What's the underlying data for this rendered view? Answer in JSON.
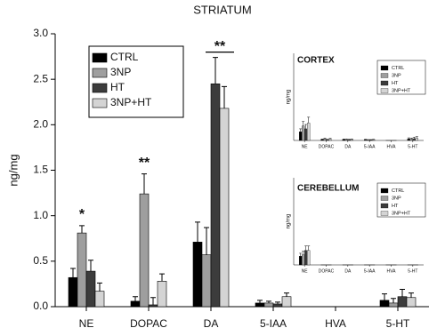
{
  "chart_data": [
    {
      "type": "bar",
      "title": "STRIATUM",
      "y_label": "ng/mg",
      "categories": [
        "NE",
        "DOPAC",
        "DA",
        "5-IAA",
        "HVA",
        "5-HT"
      ],
      "ylim": [
        0,
        3.0
      ],
      "yticks": [
        {
          "value": 0,
          "label": "0.0"
        },
        {
          "value": 0.5,
          "label": "0.5"
        },
        {
          "value": 1.0,
          "label": "1.0"
        },
        {
          "value": 1.5,
          "label": "1.5"
        },
        {
          "value": 2.0,
          "label": "2.0"
        },
        {
          "value": 2.5,
          "label": "2.5"
        },
        {
          "value": 3.0,
          "label": "3.0"
        }
      ],
      "series": [
        {
          "name": "CTRL",
          "color": "#000000",
          "values": [
            0.32,
            0.06,
            0.71,
            0.04,
            0,
            0.07
          ],
          "errors": [
            0.1,
            0.05,
            0.22,
            0.03,
            0,
            0.07
          ]
        },
        {
          "name": "3NP",
          "color": "#9e9e9e",
          "values": [
            0.81,
            1.24,
            0.57,
            0.04,
            0,
            0.04
          ],
          "errors": [
            0.08,
            0.22,
            0.3,
            0.02,
            0,
            0.05
          ]
        },
        {
          "name": "HT",
          "color": "#3c3c3c",
          "values": [
            0.39,
            0.02,
            2.45,
            0.03,
            0,
            0.11
          ],
          "errors": [
            0.12,
            0.08,
            0.29,
            0.02,
            0,
            0.08
          ]
        },
        {
          "name": "3NP+HT",
          "color": "#d4d4d4",
          "values": [
            0.17,
            0.28,
            2.18,
            0.11,
            0,
            0.1
          ],
          "errors": [
            0.09,
            0.08,
            0.24,
            0.04,
            0,
            0.05
          ]
        }
      ],
      "annotations": [
        {
          "text": "*",
          "category": "NE"
        },
        {
          "text": "**",
          "category": "DOPAC"
        },
        {
          "text": "**",
          "category": "DA"
        }
      ]
    },
    {
      "type": "bar",
      "title": "CORTEX",
      "y_label": "ng/mg",
      "categories": [
        "NE",
        "DOPAC",
        "DA",
        "5-IAA",
        "HVA",
        "5-HT"
      ],
      "ylim": [
        0,
        3.0
      ],
      "series": [
        {
          "name": "CTRL",
          "color": "#000000",
          "values": [
            0.3,
            0.03,
            0.03,
            0.02,
            0,
            0.05
          ],
          "errors": [
            0.1,
            0.02,
            0.02,
            0.02,
            0,
            0.04
          ]
        },
        {
          "name": "3NP",
          "color": "#9e9e9e",
          "values": [
            0.5,
            0.05,
            0.03,
            0.02,
            0,
            0.04
          ],
          "errors": [
            0.15,
            0.03,
            0.02,
            0.01,
            0,
            0.04
          ]
        },
        {
          "name": "HT",
          "color": "#3c3c3c",
          "values": [
            0.4,
            0.02,
            0.02,
            0.02,
            0,
            0.06
          ],
          "errors": [
            0.15,
            0.02,
            0.02,
            0.01,
            0,
            0.05
          ]
        },
        {
          "name": "3NP+HT",
          "color": "#d4d4d4",
          "values": [
            0.6,
            0.04,
            0.03,
            0.02,
            0,
            0.08
          ],
          "errors": [
            0.2,
            0.03,
            0.02,
            0.02,
            0,
            0.05
          ]
        }
      ]
    },
    {
      "type": "bar",
      "title": "CEREBELLUM",
      "y_label": "ng/mg",
      "categories": [
        "NE",
        "DOPAC",
        "DA",
        "5-IAA",
        "HVA",
        "5-HT"
      ],
      "ylim": [
        0,
        3.0
      ],
      "series": [
        {
          "name": "CTRL",
          "color": "#000000",
          "values": [
            0.3,
            0,
            0,
            0,
            0,
            0
          ],
          "errors": [
            0.1,
            0,
            0,
            0,
            0,
            0
          ]
        },
        {
          "name": "3NP",
          "color": "#9e9e9e",
          "values": [
            0.35,
            0,
            0,
            0,
            0,
            0
          ],
          "errors": [
            0.12,
            0,
            0,
            0,
            0,
            0
          ]
        },
        {
          "name": "HT",
          "color": "#3c3c3c",
          "values": [
            0.5,
            0,
            0,
            0,
            0,
            0
          ],
          "errors": [
            0.15,
            0,
            0,
            0,
            0,
            0
          ]
        },
        {
          "name": "3NP+HT",
          "color": "#d4d4d4",
          "values": [
            0.5,
            0,
            0,
            0,
            0,
            0
          ],
          "errors": [
            0.15,
            0,
            0,
            0,
            0,
            0
          ]
        }
      ]
    }
  ]
}
